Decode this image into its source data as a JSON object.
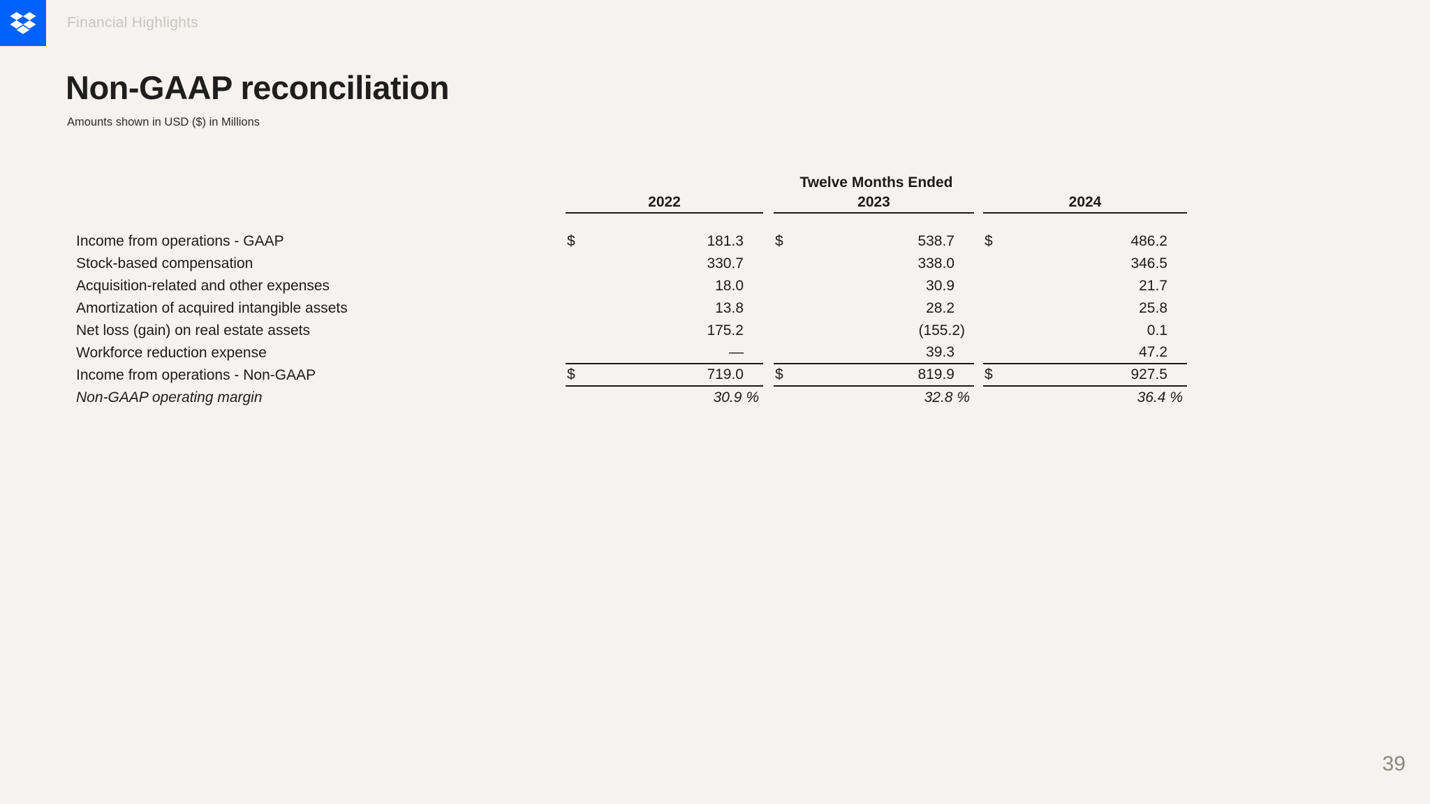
{
  "page": {
    "breadcrumb": "Financial Highlights",
    "title": "Non-GAAP reconciliation",
    "subtitle": "Amounts shown in USD ($) in Millions",
    "page_number": "39"
  },
  "icons": {
    "logo": "dropbox-logo"
  },
  "colors": {
    "brand_blue": "#0061FE",
    "background": "#F5F3EF",
    "text": "#1B1B1B",
    "breadcrumb_gray": "#C9C6C1",
    "page_number_gray": "#8A8880",
    "rule": "#1A1A1A"
  },
  "table": {
    "group_header": "Twelve Months Ended",
    "years": [
      "2022",
      "2023",
      "2024"
    ],
    "currency_symbol": "$",
    "rows": [
      {
        "label": "Income from operations - GAAP",
        "dollar": true,
        "italic": false,
        "values": [
          "181.3",
          "538.7",
          "486.2"
        ]
      },
      {
        "label": "Stock-based compensation",
        "dollar": false,
        "italic": false,
        "values": [
          "330.7",
          "338.0",
          "346.5"
        ]
      },
      {
        "label": "Acquisition-related and other expenses",
        "dollar": false,
        "italic": false,
        "values": [
          "18.0",
          "30.9",
          "21.7"
        ]
      },
      {
        "label": "Amortization of acquired intangible assets",
        "dollar": false,
        "italic": false,
        "values": [
          "13.8",
          "28.2",
          "25.8"
        ]
      },
      {
        "label": "Net loss (gain) on real estate assets",
        "dollar": false,
        "italic": false,
        "values": [
          "175.2",
          "(155.2)",
          "0.1"
        ]
      },
      {
        "label": "Workforce reduction expense",
        "dollar": false,
        "italic": false,
        "values": [
          "—",
          "39.3",
          "47.2"
        ]
      },
      {
        "label": "Income from operations - Non-GAAP",
        "dollar": true,
        "italic": false,
        "values": [
          "719.0",
          "819.9",
          "927.5"
        ]
      },
      {
        "label": "Non-GAAP operating margin",
        "dollar": false,
        "italic": true,
        "values": [
          "30.9 %",
          "32.8 %",
          "36.4 %"
        ]
      }
    ]
  }
}
